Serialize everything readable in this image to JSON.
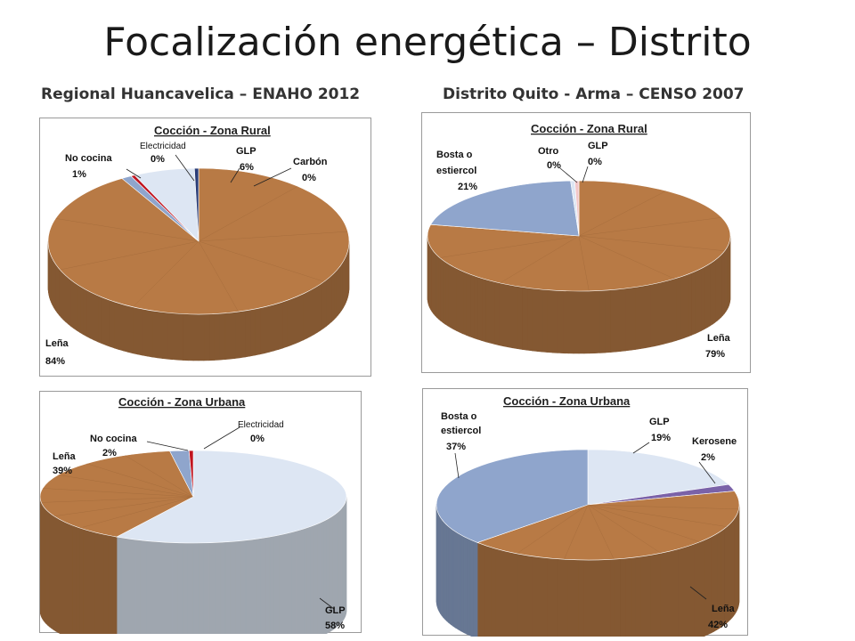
{
  "title": "Focalización energética – Distrito",
  "subtitles": {
    "left": "Regional Huancavelica – ENAHO 2012",
    "right": "Distrito Quito - Arma – CENSO 2007"
  },
  "colors": {
    "wood": "#b87a45",
    "wood_dark": "#8a552b",
    "blue": "#8fa5cc",
    "light": "#dde6f3",
    "red": "#c0141f",
    "purple": "#7a62a8",
    "pink": "#f2c6c8",
    "navy": "#2a3d78"
  },
  "chart_data": [
    {
      "type": "pie",
      "title": "Cocción - Zona Rural",
      "labels": [
        "Leña",
        "No cocina",
        "Electricidad",
        "GLP",
        "Carbón"
      ],
      "values": [
        84,
        1,
        0,
        6,
        0
      ],
      "display": [
        "84%",
        "1%",
        "0%",
        "6%",
        "0%"
      ],
      "colors": [
        "wood",
        "blue",
        "red",
        "light",
        "navy"
      ]
    },
    {
      "type": "pie",
      "title": "Cocción - Zona Rural",
      "labels": [
        "Leña",
        "Bosta o estiercol",
        "Otro",
        "GLP"
      ],
      "values": [
        79,
        21,
        0,
        0
      ],
      "display": [
        "79%",
        "21%",
        "0%",
        "0%"
      ],
      "colors": [
        "wood",
        "blue",
        "light",
        "pink"
      ]
    },
    {
      "type": "pie",
      "title": "Cocción - Zona Urbana",
      "labels": [
        "GLP",
        "Leña",
        "No cocina",
        "Electricidad"
      ],
      "values": [
        58,
        39,
        2,
        0
      ],
      "display": [
        "58%",
        "39%",
        "2%",
        "0%"
      ],
      "colors": [
        "light",
        "wood",
        "blue",
        "red"
      ]
    },
    {
      "type": "pie",
      "title": "Cocción - Zona Urbana",
      "labels": [
        "GLP",
        "Kerosene",
        "Leña",
        "Bosta o estiercol"
      ],
      "values": [
        19,
        2,
        42,
        37
      ],
      "display": [
        "19%",
        "2%",
        "42%",
        "37%"
      ],
      "colors": [
        "light",
        "purple",
        "wood",
        "blue"
      ]
    }
  ]
}
